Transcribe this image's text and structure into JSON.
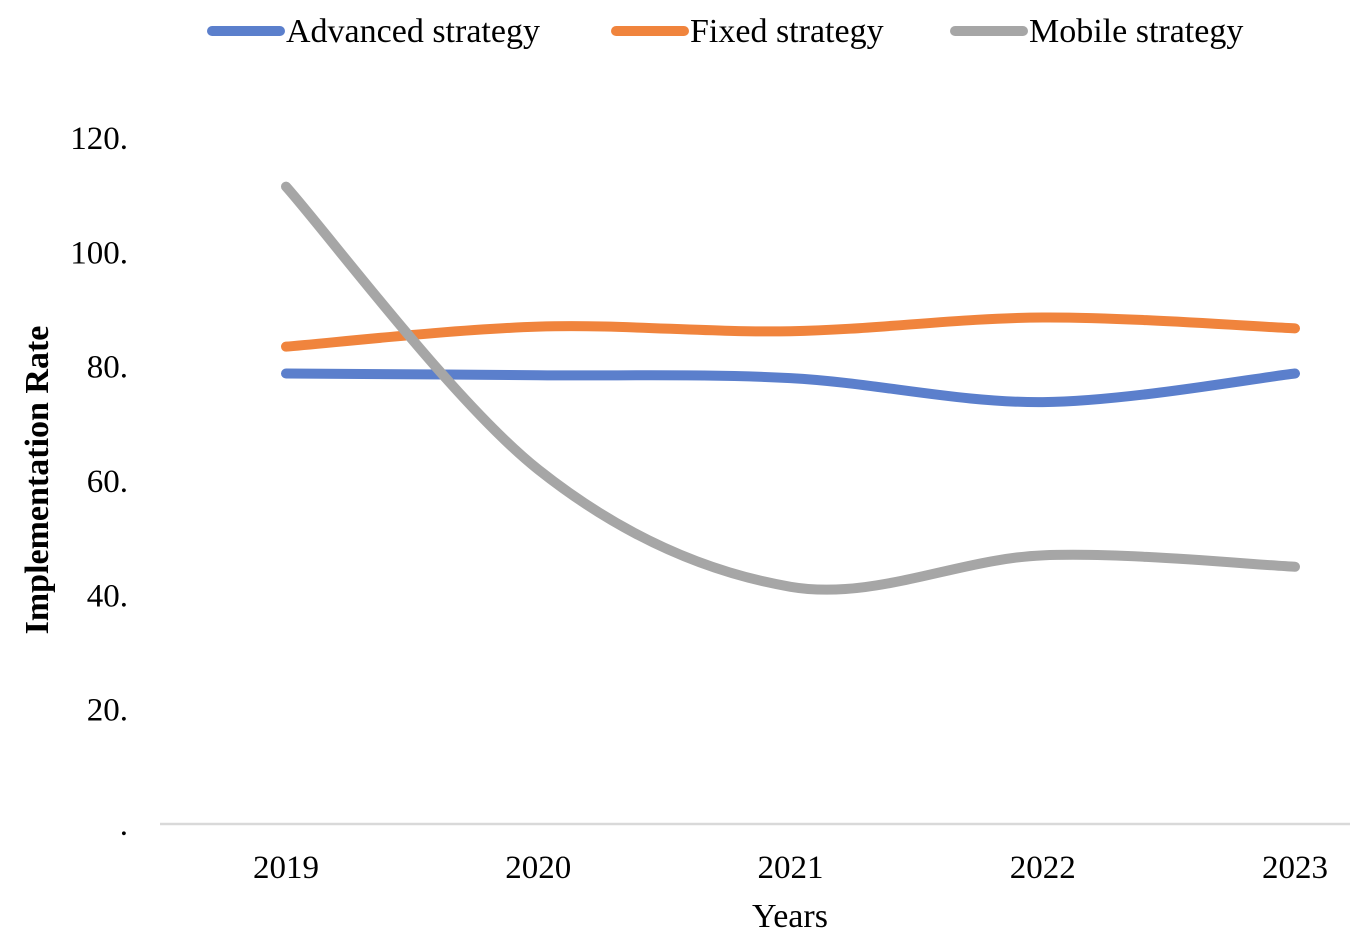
{
  "chart_data": {
    "type": "line",
    "categories": [
      "2019",
      "2020",
      "2021",
      "2022",
      "2023"
    ],
    "series": [
      {
        "name": "Advanced strategy",
        "values": [
          78.8,
          78.5,
          78.0,
          73.8,
          78.8
        ],
        "color": "#5B7FCC"
      },
      {
        "name": "Fixed strategy",
        "values": [
          83.5,
          87.0,
          86.2,
          88.6,
          86.7
        ],
        "color": "#F0843D"
      },
      {
        "name": "Mobile strategy",
        "values": [
          111.5,
          62.0,
          41.5,
          47.0,
          45.0
        ],
        "color": "#A6A6A6"
      }
    ],
    "y_ticks": [
      {
        "value": 0,
        "label": "."
      },
      {
        "value": 20,
        "label": "20."
      },
      {
        "value": 40,
        "label": "40."
      },
      {
        "value": 60,
        "label": "60."
      },
      {
        "value": 80,
        "label": "80."
      },
      {
        "value": 100,
        "label": "100."
      },
      {
        "value": 120,
        "label": "120."
      }
    ],
    "ylim": [
      0,
      120
    ],
    "xlabel": "Years",
    "ylabel": "Implementation Rate",
    "legend_position": "top",
    "grid": false,
    "line_style": "smooth",
    "axis_line_color": "#D9D9D9"
  }
}
